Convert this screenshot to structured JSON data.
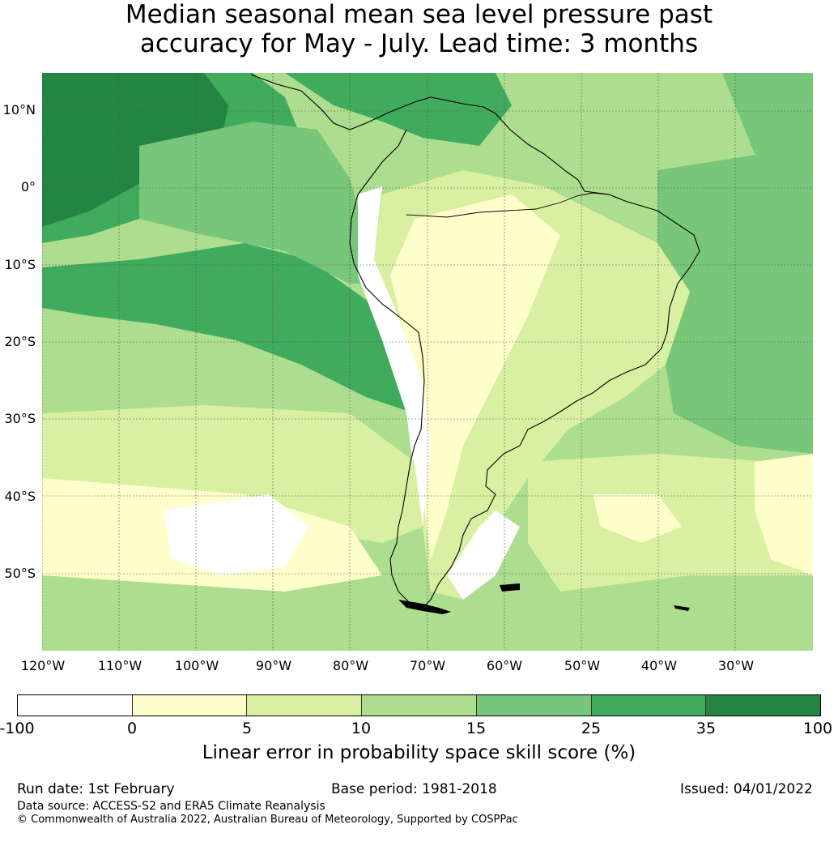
{
  "title_line1": "Median seasonal mean sea level pressure past",
  "title_line2": "accuracy for May - July. Lead time: 3 months",
  "lat_labels": [
    "10°N",
    "0°",
    "10°S",
    "20°S",
    "30°S",
    "40°S",
    "50°S"
  ],
  "lon_labels": [
    "120°W",
    "110°W",
    "100°W",
    "90°W",
    "80°W",
    "70°W",
    "60°W",
    "50°W",
    "40°W",
    "30°W"
  ],
  "colorbar": {
    "ticks": [
      "-100",
      "0",
      "5",
      "10",
      "15",
      "25",
      "35",
      "100"
    ],
    "colors": [
      "#ffffff",
      "#ffffcc",
      "#d9f0a3",
      "#addd8e",
      "#78c679",
      "#41ab5d",
      "#238443"
    ],
    "label": "Linear error in probability space skill score (%)"
  },
  "footer": {
    "run_date": "Run date: 1st February",
    "base_period": "Base period: 1981-2018",
    "issued": "Issued: 04/01/2022",
    "data_source": "Data source: ACCESS-S2 and ERA5 Climate Reanalysis",
    "copyright": "© Commonwealth of Australia 2022, Australian Bureau of Meteorology, Supported by COSPPac"
  }
}
